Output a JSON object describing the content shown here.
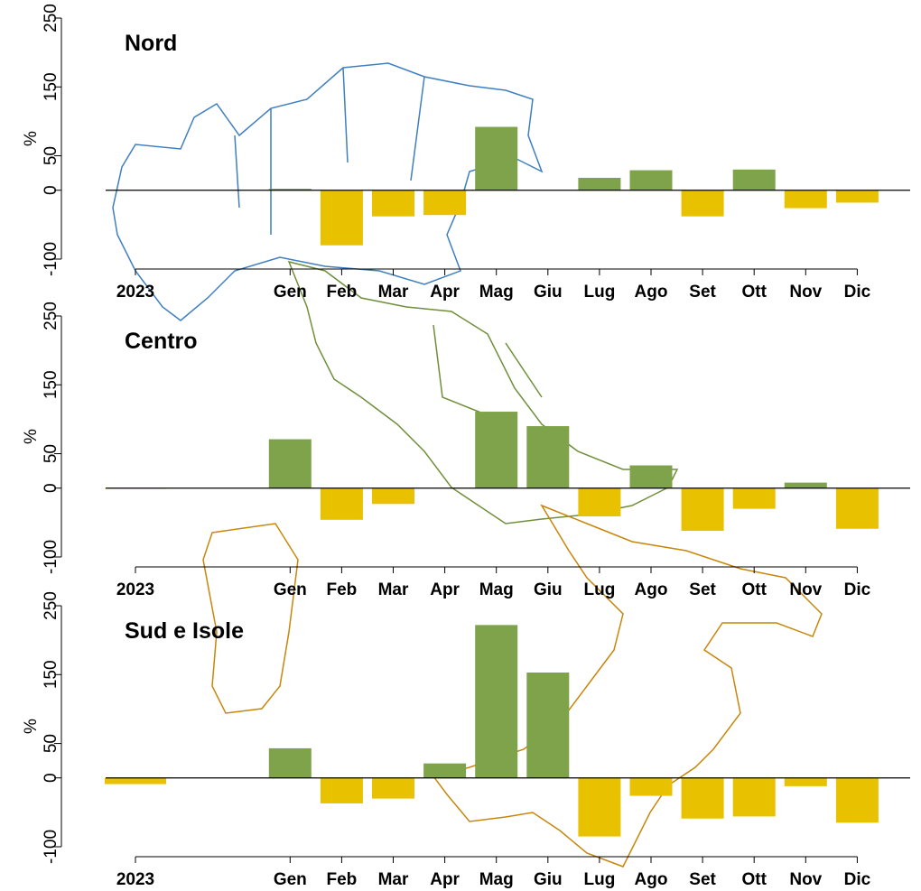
{
  "chart_data": [
    {
      "type": "bar",
      "title": "Nord",
      "ylabel": "%",
      "categories": [
        "2023",
        null,
        null,
        "Gen",
        "Feb",
        "Mar",
        "Apr",
        "Mag",
        "Giu",
        "Lug",
        "Ago",
        "Set",
        "Ott",
        "Nov",
        "Dic"
      ],
      "values": [
        0,
        null,
        null,
        2,
        -80,
        -38,
        -36,
        92,
        0,
        18,
        29,
        -38,
        30,
        -26,
        -18
      ],
      "ylim": [
        -100,
        250
      ],
      "yticks": [
        -100,
        0,
        50,
        150,
        250
      ],
      "positive_color": "#7fa34a",
      "negative_color": "#e8c100"
    },
    {
      "type": "bar",
      "title": "Centro",
      "ylabel": "%",
      "categories": [
        "2023",
        null,
        null,
        "Gen",
        "Feb",
        "Mar",
        "Apr",
        "Mag",
        "Giu",
        "Lug",
        "Ago",
        "Set",
        "Ott",
        "Nov",
        "Dic"
      ],
      "values": [
        -1,
        null,
        null,
        71,
        -46,
        -23,
        0,
        111,
        90,
        -41,
        33,
        -62,
        -30,
        8,
        -59
      ],
      "ylim": [
        -100,
        250
      ],
      "yticks": [
        -100,
        0,
        50,
        150,
        250
      ],
      "positive_color": "#7fa34a",
      "negative_color": "#e8c100"
    },
    {
      "type": "bar",
      "title": "Sud e Isole",
      "ylabel": "%",
      "categories": [
        "2023",
        null,
        null,
        "Gen",
        "Feb",
        "Mar",
        "Apr",
        "Mag",
        "Giu",
        "Lug",
        "Ago",
        "Set",
        "Ott",
        "Nov",
        "Dic"
      ],
      "values": [
        -9,
        null,
        null,
        43,
        -37,
        -30,
        21,
        222,
        153,
        -85,
        -26,
        -59,
        -56,
        -12,
        -65
      ],
      "ylim": [
        -100,
        250
      ],
      "yticks": [
        -100,
        0,
        50,
        150,
        250
      ],
      "positive_color": "#7fa34a",
      "negative_color": "#e8c100"
    }
  ]
}
